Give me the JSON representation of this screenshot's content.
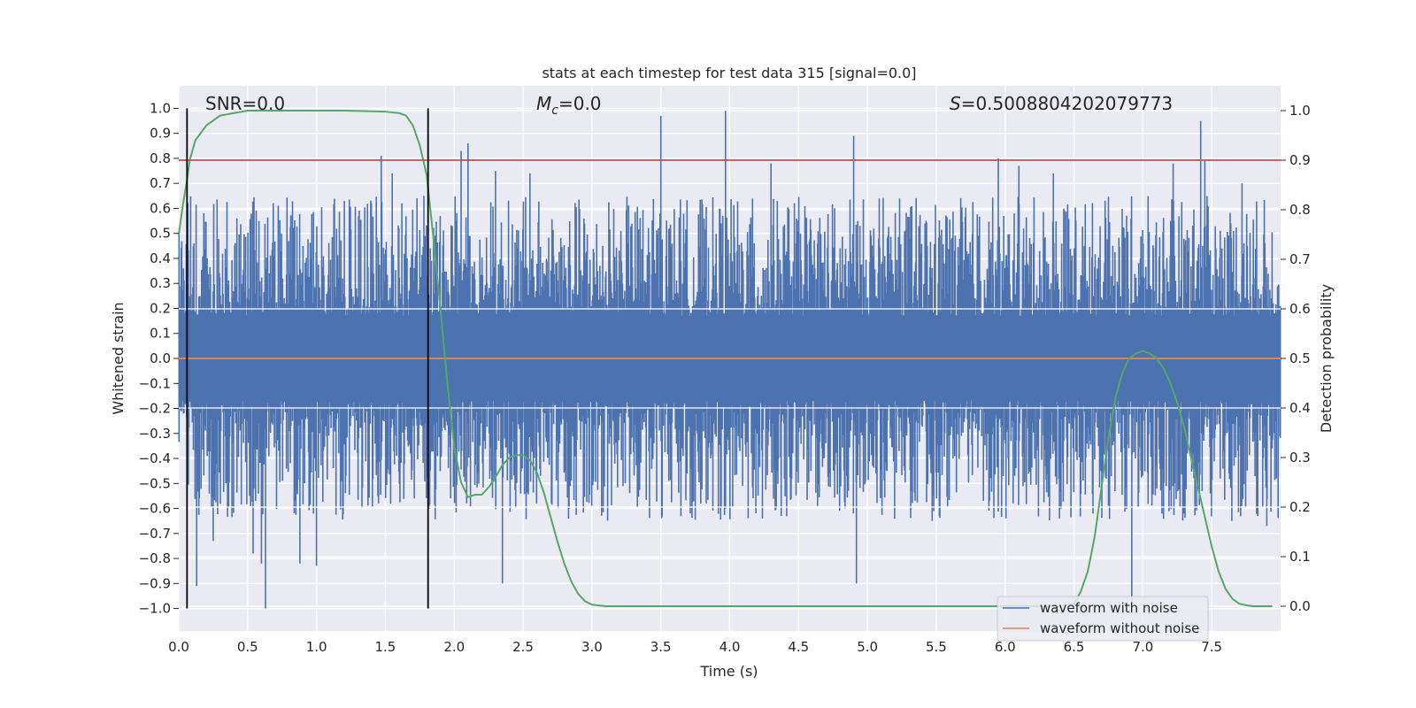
{
  "chart_data": {
    "type": "line",
    "title": "stats at each timestep for test data 315 [signal=0.0]",
    "xlabel": "Time (s)",
    "ylabel": "Whitened strain",
    "y2label": "Detection probability",
    "xlim": [
      0.0,
      8.0
    ],
    "ylim": [
      -1.09,
      1.09
    ],
    "y2lim": [
      -0.05,
      1.05
    ],
    "xticks": [
      "0.0",
      "0.5",
      "1.0",
      "1.5",
      "2.0",
      "2.5",
      "3.0",
      "3.5",
      "4.0",
      "4.5",
      "5.0",
      "5.5",
      "6.0",
      "6.5",
      "7.0",
      "7.5"
    ],
    "yticks": [
      "1.0",
      "0.9",
      "0.8",
      "0.7",
      "0.6",
      "0.5",
      "0.4",
      "0.3",
      "0.2",
      "0.1",
      "0.0",
      "−0.1",
      "−0.2",
      "−0.3",
      "−0.4",
      "−0.5",
      "−0.6",
      "−0.7",
      "−0.8",
      "−0.9",
      "−1.0"
    ],
    "y2ticks": [
      "1.0",
      "0.9",
      "0.8",
      "0.7",
      "0.6",
      "0.5",
      "0.4",
      "0.3",
      "0.2",
      "0.1",
      "0.0"
    ],
    "annotations": {
      "snr": "SNR=0.0",
      "mc_symbol": "M",
      "mc_sub": "c",
      "mc_value": "=0.0",
      "s_symbol": "S",
      "s_value": "=0.5008804202079773"
    },
    "threshold": {
      "y2": 0.9,
      "color": "#c44e52"
    },
    "vlines": [
      0.06,
      1.81
    ],
    "vline_range": [
      -1.0,
      1.0
    ],
    "series": [
      {
        "name": "waveform with noise",
        "color": "#4c72b0",
        "axis": "left",
        "style": "dense noise",
        "y_min": -1.0,
        "y_max": 0.99,
        "spikes": [
          [
            0.13,
            -0.91
          ],
          [
            0.25,
            -0.73
          ],
          [
            0.54,
            -0.78
          ],
          [
            0.6,
            -0.82
          ],
          [
            0.63,
            -1.0
          ],
          [
            0.88,
            -0.82
          ],
          [
            1.0,
            -0.83
          ],
          [
            1.47,
            0.81
          ],
          [
            1.55,
            0.74
          ],
          [
            1.62,
            0.62
          ],
          [
            1.78,
            0.65
          ],
          [
            2.05,
            0.83
          ],
          [
            2.1,
            0.86
          ],
          [
            2.3,
            0.75
          ],
          [
            2.35,
            -0.9
          ],
          [
            2.55,
            0.74
          ],
          [
            3.5,
            0.97
          ],
          [
            3.97,
            0.99
          ],
          [
            4.3,
            0.78
          ],
          [
            4.9,
            0.89
          ],
          [
            4.92,
            -0.9
          ],
          [
            5.95,
            0.8
          ],
          [
            6.1,
            0.77
          ],
          [
            6.35,
            0.74
          ],
          [
            6.92,
            -0.98
          ],
          [
            7.22,
            0.78
          ],
          [
            7.42,
            0.95
          ],
          [
            7.45,
            0.79
          ],
          [
            7.72,
            0.7
          ],
          [
            7.9,
            -0.67
          ]
        ]
      },
      {
        "name": "waveform without noise",
        "color": "#dd8452",
        "axis": "left",
        "constant": 0.0
      },
      {
        "name": "detection probability",
        "color": "#55a868",
        "axis": "right",
        "x": [
          0.0,
          0.03,
          0.06,
          0.08,
          0.12,
          0.2,
          0.3,
          0.5,
          0.8,
          1.2,
          1.5,
          1.6,
          1.65,
          1.7,
          1.75,
          1.8,
          1.85,
          1.9,
          1.95,
          2.0,
          2.05,
          2.1,
          2.15,
          2.2,
          2.25,
          2.3,
          2.35,
          2.4,
          2.45,
          2.5,
          2.55,
          2.6,
          2.65,
          2.7,
          2.75,
          2.8,
          2.85,
          2.9,
          2.95,
          3.0,
          3.1,
          3.3,
          4.0,
          5.0,
          6.0,
          6.4,
          6.5,
          6.55,
          6.6,
          6.65,
          6.7,
          6.75,
          6.8,
          6.85,
          6.9,
          6.95,
          7.0,
          7.05,
          7.1,
          7.15,
          7.2,
          7.25,
          7.3,
          7.35,
          7.4,
          7.45,
          7.5,
          7.55,
          7.6,
          7.65,
          7.7,
          7.75,
          7.8,
          7.85,
          7.9,
          7.94
        ],
        "values": [
          0.75,
          0.81,
          0.86,
          0.9,
          0.94,
          0.97,
          0.99,
          1.0,
          1.0,
          1.0,
          0.998,
          0.995,
          0.99,
          0.97,
          0.93,
          0.87,
          0.74,
          0.6,
          0.45,
          0.32,
          0.25,
          0.22,
          0.225,
          0.225,
          0.24,
          0.26,
          0.285,
          0.3,
          0.305,
          0.305,
          0.295,
          0.27,
          0.23,
          0.18,
          0.13,
          0.085,
          0.05,
          0.025,
          0.01,
          0.003,
          0.0,
          0.0,
          0.0,
          0.0,
          0.0,
          0.0,
          0.005,
          0.03,
          0.07,
          0.14,
          0.24,
          0.34,
          0.42,
          0.47,
          0.5,
          0.51,
          0.515,
          0.51,
          0.5,
          0.48,
          0.45,
          0.41,
          0.36,
          0.3,
          0.24,
          0.18,
          0.12,
          0.07,
          0.035,
          0.015,
          0.005,
          0.002,
          0.0,
          0.0,
          0.0,
          0.0
        ]
      }
    ],
    "legend": {
      "position": "bottom-right",
      "entries": [
        {
          "label": "waveform with noise",
          "color": "#4c72b0"
        },
        {
          "label": "waveform without noise",
          "color": "#dd8452"
        }
      ]
    },
    "grid": true,
    "background": "#eaeaf2"
  }
}
